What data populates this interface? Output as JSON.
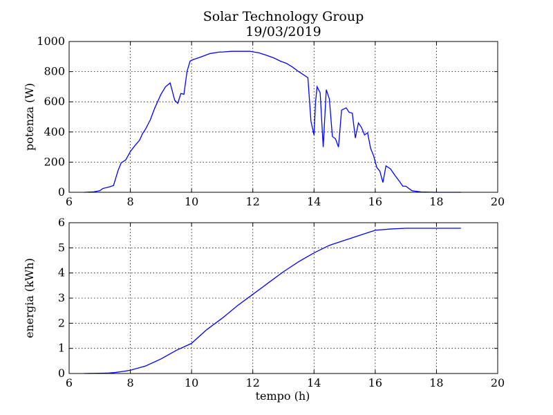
{
  "chart_data": [
    {
      "type": "line",
      "title": "Solar Technology Group",
      "subtitle": "19/03/2019",
      "xlabel": "",
      "ylabel": "potenza (W)",
      "xlim": [
        6,
        20
      ],
      "ylim": [
        0,
        1000
      ],
      "xticks": [
        "6",
        "8",
        "10",
        "12",
        "14",
        "16",
        "18",
        "20"
      ],
      "yticks": [
        "0",
        "200",
        "400",
        "600",
        "800",
        "1000"
      ],
      "grid": true,
      "color": "#0000ff",
      "series": [
        {
          "x": [
            6.5,
            6.8,
            7.0,
            7.1,
            7.3,
            7.45,
            7.6,
            7.7,
            7.85,
            8.0,
            8.15,
            8.3,
            8.4,
            8.5,
            8.65,
            8.8,
            9.0,
            9.15,
            9.3,
            9.45,
            9.55,
            9.65,
            9.75,
            9.85,
            9.95,
            10.05,
            10.2,
            10.4,
            10.6,
            10.75,
            10.9,
            11.0,
            11.3,
            11.6,
            11.9,
            12.2,
            12.5,
            12.7,
            12.9,
            13.1,
            13.3,
            13.5,
            13.65,
            13.8,
            13.9,
            14.0,
            14.05,
            14.1,
            14.2,
            14.3,
            14.4,
            14.5,
            14.6,
            14.7,
            14.8,
            14.9,
            15.05,
            15.15,
            15.25,
            15.35,
            15.45,
            15.55,
            15.65,
            15.75,
            15.85,
            15.95,
            16.05,
            16.15,
            16.25,
            16.35,
            16.5,
            16.65,
            16.8,
            16.9,
            17.0,
            17.2,
            17.5,
            18.0,
            18.5,
            18.8
          ],
          "y": [
            0,
            3,
            10,
            25,
            35,
            45,
            145,
            195,
            215,
            270,
            310,
            345,
            390,
            420,
            480,
            560,
            650,
            700,
            725,
            610,
            590,
            655,
            650,
            800,
            870,
            880,
            890,
            905,
            920,
            925,
            930,
            930,
            935,
            935,
            935,
            925,
            905,
            890,
            870,
            855,
            830,
            800,
            780,
            760,
            470,
            380,
            600,
            700,
            660,
            300,
            680,
            620,
            370,
            355,
            300,
            545,
            560,
            530,
            525,
            360,
            460,
            430,
            380,
            395,
            290,
            240,
            165,
            140,
            65,
            175,
            155,
            110,
            70,
            40,
            40,
            10,
            2,
            0,
            0,
            0
          ]
        }
      ]
    },
    {
      "type": "line",
      "title": "",
      "xlabel": "tempo (h)",
      "ylabel": "energia (kWh)",
      "xlim": [
        6,
        20
      ],
      "ylim": [
        0,
        6
      ],
      "xticks": [
        "6",
        "8",
        "10",
        "12",
        "14",
        "16",
        "18",
        "20"
      ],
      "yticks": [
        "0",
        "1",
        "2",
        "3",
        "4",
        "5",
        "6"
      ],
      "grid": true,
      "color": "#0000ff",
      "series": [
        {
          "x": [
            6.5,
            7.0,
            7.3,
            7.5,
            7.8,
            8.0,
            8.5,
            9.0,
            9.5,
            10.0,
            10.5,
            11.0,
            11.5,
            12.0,
            12.5,
            13.0,
            13.5,
            14.0,
            14.5,
            15.0,
            15.5,
            16.0,
            16.5,
            17.0,
            17.5,
            18.0,
            18.8
          ],
          "y": [
            0,
            0.01,
            0.02,
            0.04,
            0.09,
            0.13,
            0.3,
            0.58,
            0.92,
            1.2,
            1.75,
            2.2,
            2.7,
            3.15,
            3.6,
            4.05,
            4.45,
            4.8,
            5.1,
            5.3,
            5.5,
            5.7,
            5.75,
            5.78,
            5.78,
            5.78,
            5.78
          ]
        }
      ]
    }
  ]
}
